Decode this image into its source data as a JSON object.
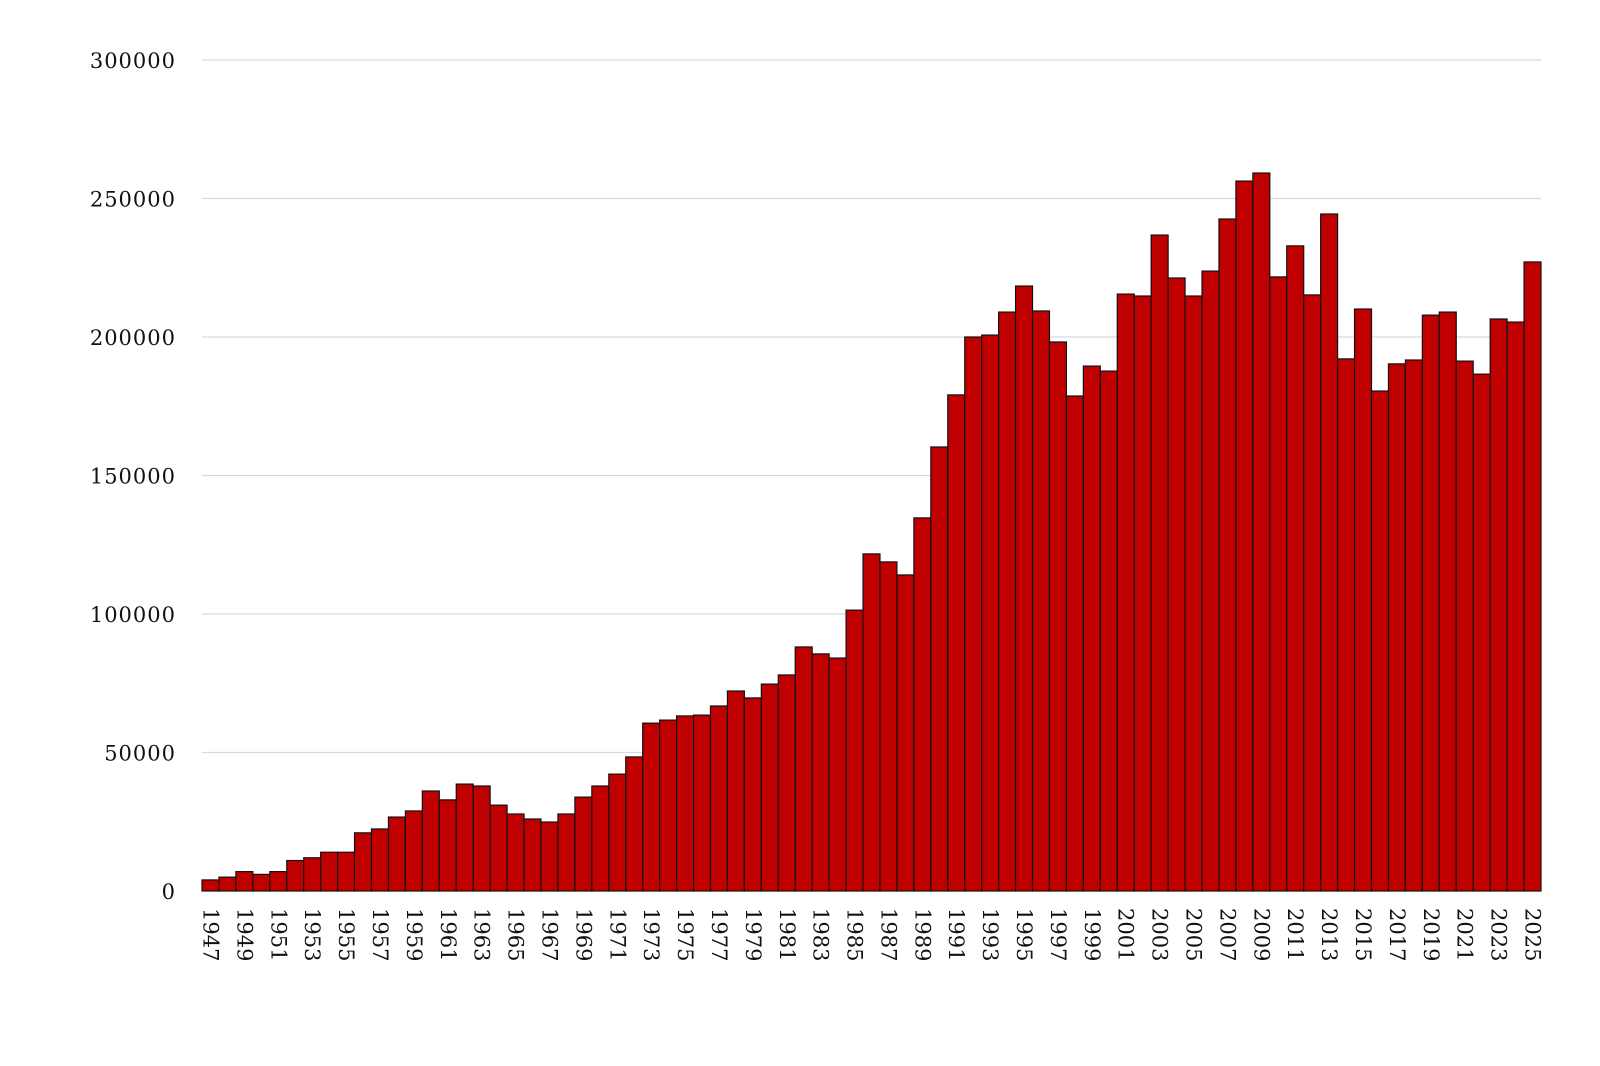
{
  "chart_data": {
    "type": "bar",
    "title": "",
    "xlabel": "",
    "ylabel": "",
    "ylim": [
      0,
      300000
    ],
    "yticks": [
      0,
      50000,
      100000,
      150000,
      200000,
      250000,
      300000
    ],
    "grid": true,
    "bar_color": "#c00000",
    "edge_color": "#111111",
    "categories": [
      1947,
      1948,
      1949,
      1950,
      1951,
      1952,
      1953,
      1954,
      1955,
      1956,
      1957,
      1958,
      1959,
      1960,
      1961,
      1962,
      1963,
      1964,
      1965,
      1966,
      1967,
      1968,
      1969,
      1970,
      1971,
      1972,
      1973,
      1974,
      1975,
      1976,
      1977,
      1978,
      1979,
      1980,
      1981,
      1982,
      1983,
      1984,
      1985,
      1986,
      1987,
      1988,
      1989,
      1990,
      1991,
      1992,
      1993,
      1994,
      1995,
      1996,
      1997,
      1998,
      1999,
      2000,
      2001,
      2002,
      2003,
      2004,
      2005,
      2006,
      2007,
      2008,
      2009,
      2010,
      2011,
      2012,
      2013,
      2014,
      2015,
      2016,
      2017,
      2018,
      2019,
      2020,
      2021,
      2022,
      2023,
      2024,
      2025
    ],
    "values": [
      4000,
      5000,
      7000,
      6000,
      7000,
      11000,
      12000,
      14000,
      14000,
      21000,
      22400,
      26700,
      28900,
      36100,
      32900,
      38600,
      37900,
      31000,
      27800,
      26000,
      24900,
      27800,
      33900,
      37900,
      42200,
      48400,
      60600,
      61700,
      63200,
      63500,
      66800,
      72200,
      69700,
      74700,
      78000,
      88100,
      85600,
      84100,
      101400,
      121700,
      118800,
      114100,
      134700,
      160300,
      179100,
      200000,
      200700,
      209000,
      218400,
      209400,
      198200,
      178700,
      189500,
      187700,
      215500,
      214800,
      236800,
      221300,
      214800,
      223800,
      242600,
      256300,
      259200,
      221700,
      232900,
      215200,
      244400,
      192100,
      210100,
      180500,
      190300,
      191700,
      207900,
      209000,
      191300,
      186600,
      206500,
      205400,
      227100
    ],
    "xtick_labels": [
      "1947",
      "1949",
      "1951",
      "1953",
      "1955",
      "1957",
      "1959",
      "1961",
      "1963",
      "1965",
      "1967",
      "1969",
      "1971",
      "1973",
      "1975",
      "1977",
      "1979",
      "1981",
      "1983",
      "1985",
      "1987",
      "1989",
      "1991",
      "1993",
      "1995",
      "1997",
      "1999",
      "2001",
      "2003",
      "2005",
      "2007",
      "2009",
      "2011",
      "2013",
      "2015",
      "2017",
      "2019",
      "2021",
      "2023",
      "2025"
    ],
    "ytick_labels": [
      "0",
      "50000",
      "100000",
      "150000",
      "200000",
      "250000",
      "300000"
    ]
  }
}
